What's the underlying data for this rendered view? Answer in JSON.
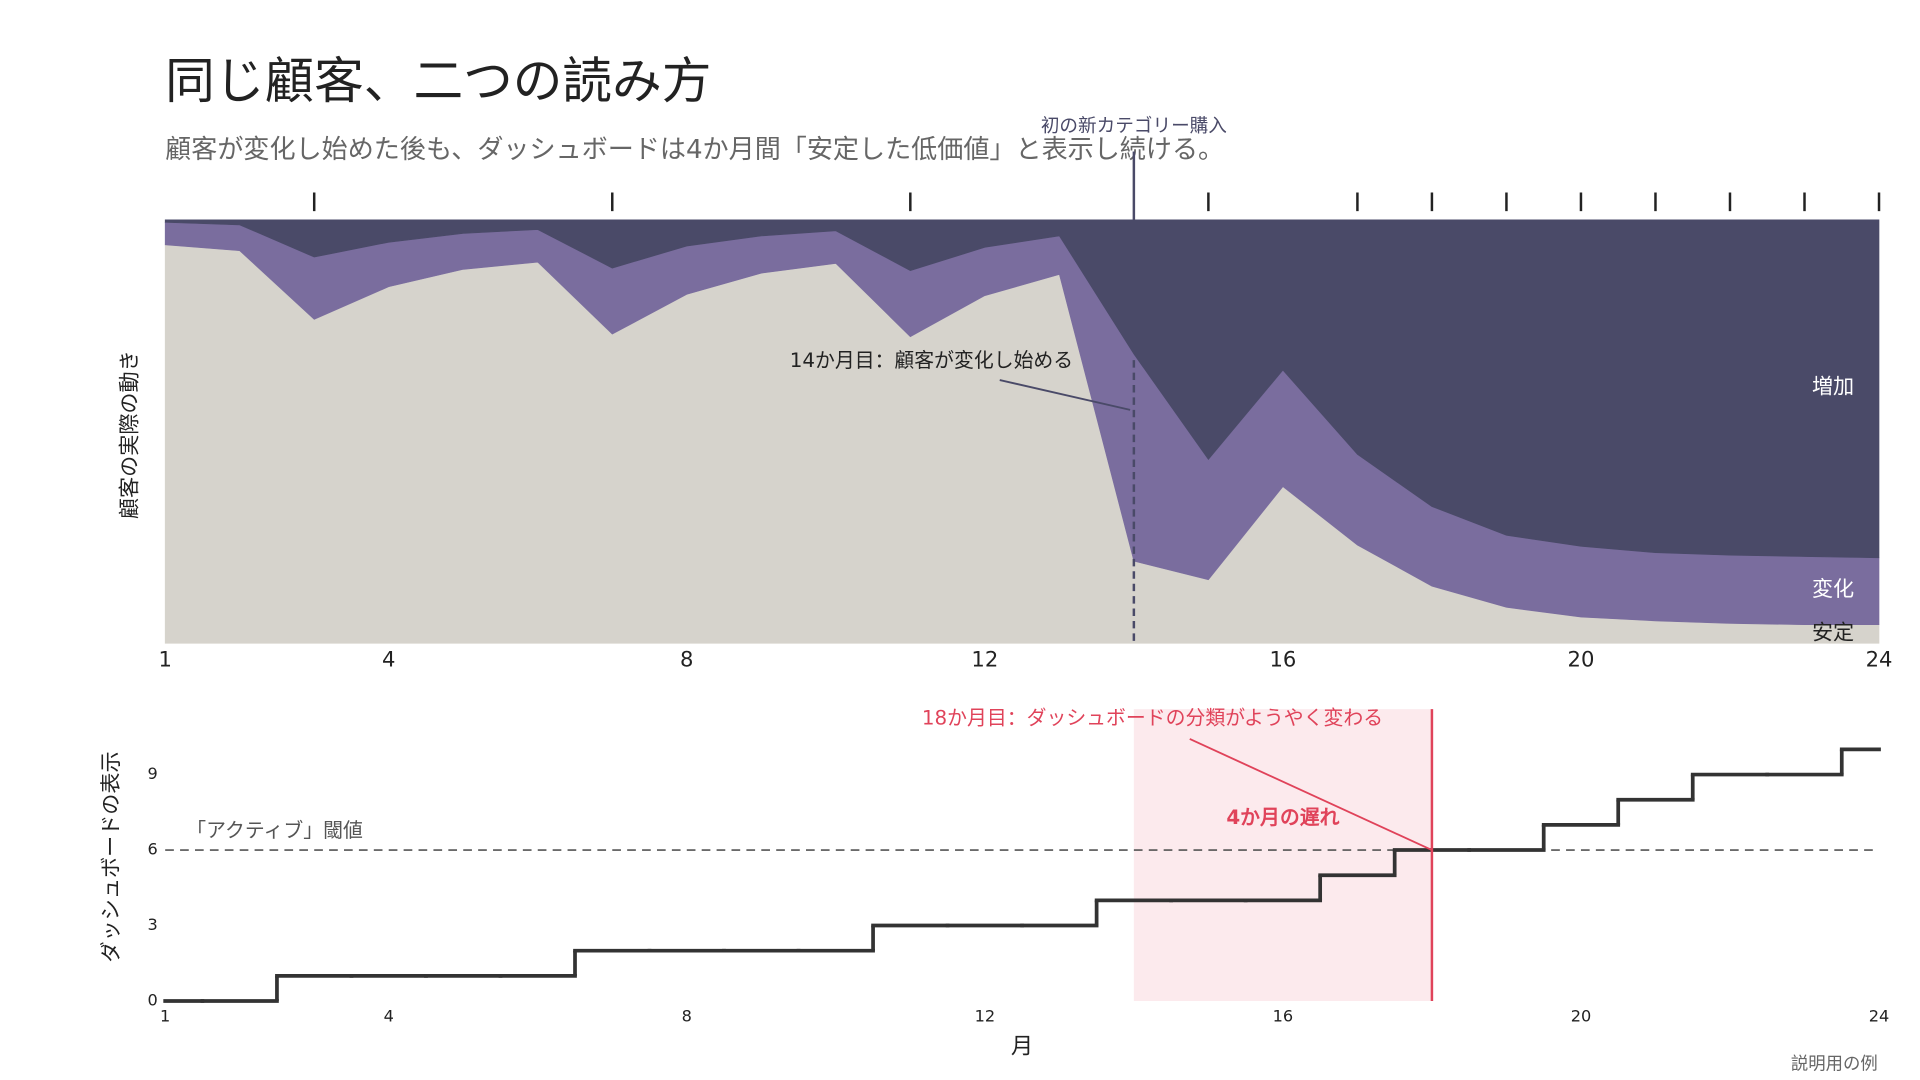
{
  "title": "同じ顧客、二つの読み方",
  "subtitle": "顧客が変化し始めた後も、ダッシュボードは4か月間「安定した低価値」と表示し続ける。",
  "note": "説明用の例",
  "chart_data": [
    {
      "type": "stacked_area",
      "ylabel": "顧客の実際の動き",
      "x": [
        1,
        2,
        3,
        4,
        5,
        6,
        7,
        8,
        9,
        10,
        11,
        12,
        13,
        14,
        15,
        16,
        17,
        18,
        19,
        20,
        21,
        22,
        23,
        24
      ],
      "xlim": [
        1,
        24
      ],
      "xticks": [
        1,
        4,
        8,
        12,
        16,
        20,
        24
      ],
      "ylim": [
        0,
        100
      ],
      "series": [
        {
          "name": "安定",
          "color": "#d6d3cc",
          "values": [
            94.1,
            92.7,
            76.5,
            84.2,
            88.3,
            90.0,
            73.0,
            82.4,
            87.4,
            89.7,
            72.4,
            82.1,
            87.1,
            19.4,
            15.0,
            37.0,
            23.2,
            13.5,
            8.5,
            6.2,
            5.3,
            4.7,
            4.4,
            4.4
          ]
        },
        {
          "name": "変化",
          "color": "#7a6d9e",
          "values": [
            5.3,
            6.1,
            14.7,
            10.5,
            8.5,
            7.7,
            15.6,
            11.4,
            8.8,
            7.7,
            15.6,
            11.4,
            9.1,
            48.9,
            28.4,
            27.5,
            21.4,
            18.8,
            17.0,
            16.7,
            16.1,
            16.1,
            16.1,
            15.8
          ]
        },
        {
          "name": "増加",
          "color": "#4a4a68",
          "values": [
            0.6,
            1.2,
            8.8,
            5.3,
            3.2,
            2.3,
            11.4,
            6.2,
            3.8,
            2.6,
            12.0,
            6.5,
            3.8,
            31.7,
            56.6,
            35.5,
            55.4,
            67.7,
            74.5,
            77.1,
            78.6,
            79.2,
            79.5,
            79.8
          ]
        }
      ],
      "event_ticks": [
        3,
        7,
        11,
        14,
        15,
        17,
        18,
        19,
        20,
        21,
        22,
        23,
        24
      ],
      "event_label": {
        "x": 14,
        "text": "初の新カテゴリー購入"
      },
      "annotation": {
        "x": 14,
        "text": "14か月目：顧客が変化し始める"
      }
    },
    {
      "type": "step",
      "ylabel": "ダッシュボードの表示",
      "xlabel": "月",
      "x": [
        1,
        2,
        3,
        4,
        5,
        6,
        7,
        8,
        9,
        10,
        11,
        12,
        13,
        14,
        15,
        16,
        17,
        18,
        19,
        20,
        21,
        22,
        23,
        24
      ],
      "xlim": [
        1,
        24
      ],
      "xticks": [
        1,
        4,
        8,
        12,
        16,
        20,
        24
      ],
      "ylim": [
        0,
        11.6
      ],
      "yticks": [
        0,
        3,
        6,
        9
      ],
      "series": [
        {
          "color": "#333333",
          "values": [
            0,
            0,
            1,
            1,
            1,
            1,
            2,
            2,
            2,
            2,
            3,
            3,
            3,
            4,
            4,
            4,
            5,
            6,
            6,
            7,
            8,
            9,
            9,
            10
          ]
        }
      ],
      "threshold": {
        "value": 6,
        "label": "「アクティブ」閾値"
      },
      "highlight": {
        "from": 14,
        "to": 18,
        "color": "#e0435a"
      },
      "annotation": {
        "x": 18,
        "y": 6,
        "text": "18か月目：ダッシュボードの分類がようやく変わる"
      },
      "lag_label": "4か月の遅れ"
    }
  ]
}
